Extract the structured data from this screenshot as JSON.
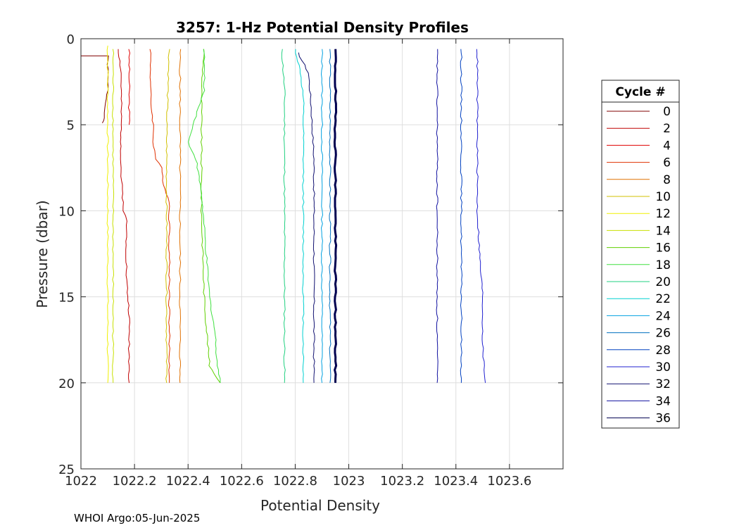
{
  "chart_data": {
    "type": "line",
    "title": "3257: 1-Hz Potential Density Profiles",
    "xlabel": "Potential Density",
    "ylabel": "Pressure (dbar)",
    "xlim": [
      1022,
      1023.8
    ],
    "ylim": [
      0,
      25
    ],
    "y_reversed": true,
    "x_ticks": [
      1022,
      1022.2,
      1022.4,
      1022.6,
      1022.8,
      1023,
      1023.2,
      1023.4,
      1023.6
    ],
    "x_tick_labels": [
      "1022",
      "1022.2",
      "1022.4",
      "1022.6",
      "1022.8",
      "1023",
      "1023.2",
      "1023.4",
      "1023.6"
    ],
    "y_ticks": [
      0,
      5,
      10,
      15,
      20,
      25
    ],
    "y_tick_labels": [
      "0",
      "5",
      "10",
      "15",
      "20",
      "25"
    ],
    "grid": true,
    "legend_title": "Cycle #",
    "legend_position": "outside-right",
    "series": [
      {
        "name": "0",
        "color": "#800000",
        "points": [
          [
            1022.0,
            1.0
          ],
          [
            1022.1,
            1.0
          ],
          [
            1022.1,
            2.0
          ],
          [
            1022.1,
            3.0
          ],
          [
            1022.09,
            4.0
          ],
          [
            1022.09,
            4.6
          ],
          [
            1022.08,
            4.9
          ]
        ]
      },
      {
        "name": "2",
        "color": "#c00000",
        "points": [
          [
            1022.14,
            0.6
          ],
          [
            1022.15,
            2.0
          ],
          [
            1022.15,
            4.0
          ],
          [
            1022.15,
            6.0
          ],
          [
            1022.15,
            8.0
          ],
          [
            1022.16,
            10.0
          ],
          [
            1022.17,
            10.6
          ],
          [
            1022.17,
            12.0
          ],
          [
            1022.17,
            14.0
          ],
          [
            1022.18,
            16.0
          ],
          [
            1022.18,
            18.0
          ],
          [
            1022.18,
            20.0
          ]
        ]
      },
      {
        "name": "4",
        "color": "#e00000",
        "points": [
          [
            1022.18,
            0.6
          ],
          [
            1022.18,
            2.0
          ],
          [
            1022.18,
            3.5
          ],
          [
            1022.18,
            5.0
          ]
        ]
      },
      {
        "name": "6",
        "color": "#e03000",
        "points": [
          [
            1022.26,
            0.6
          ],
          [
            1022.26,
            2.0
          ],
          [
            1022.26,
            3.5
          ],
          [
            1022.27,
            5.0
          ],
          [
            1022.27,
            6.0
          ],
          [
            1022.28,
            7.0
          ],
          [
            1022.3,
            7.5
          ],
          [
            1022.31,
            8.5
          ],
          [
            1022.33,
            9.5
          ],
          [
            1022.33,
            12.0
          ],
          [
            1022.33,
            15.0
          ],
          [
            1022.33,
            18.0
          ],
          [
            1022.33,
            20.0
          ]
        ]
      },
      {
        "name": "8",
        "color": "#e07000",
        "points": [
          [
            1022.37,
            0.6
          ],
          [
            1022.37,
            5.0
          ],
          [
            1022.37,
            10.0
          ],
          [
            1022.37,
            15.0
          ],
          [
            1022.37,
            20.0
          ]
        ]
      },
      {
        "name": "10",
        "color": "#d0c000",
        "points": [
          [
            1022.33,
            0.6
          ],
          [
            1022.32,
            5.0
          ],
          [
            1022.32,
            10.0
          ],
          [
            1022.32,
            15.0
          ],
          [
            1022.32,
            20.0
          ]
        ]
      },
      {
        "name": "12",
        "color": "#f0f000",
        "points": [
          [
            1022.1,
            0.4
          ],
          [
            1022.1,
            5.0
          ],
          [
            1022.1,
            10.0
          ],
          [
            1022.1,
            15.0
          ],
          [
            1022.1,
            20.0
          ]
        ]
      },
      {
        "name": "14",
        "color": "#c8e000",
        "points": [
          [
            1022.12,
            0.6
          ],
          [
            1022.12,
            5.0
          ],
          [
            1022.12,
            10.0
          ],
          [
            1022.12,
            15.0
          ],
          [
            1022.12,
            20.0
          ]
        ]
      },
      {
        "name": "16",
        "color": "#60d000",
        "points": [
          [
            1022.46,
            0.6
          ],
          [
            1022.45,
            3.0
          ],
          [
            1022.45,
            5.0
          ],
          [
            1022.45,
            10.0
          ],
          [
            1022.46,
            15.0
          ],
          [
            1022.47,
            17.0
          ],
          [
            1022.48,
            19.0
          ],
          [
            1022.52,
            20.0
          ]
        ]
      },
      {
        "name": "18",
        "color": "#40e040",
        "points": [
          [
            1022.46,
            0.6
          ],
          [
            1022.46,
            3.0
          ],
          [
            1022.4,
            6.0
          ],
          [
            1022.43,
            7.0
          ],
          [
            1022.45,
            9.0
          ],
          [
            1022.46,
            11.0
          ],
          [
            1022.47,
            13.0
          ],
          [
            1022.48,
            15.0
          ],
          [
            1022.5,
            17.0
          ],
          [
            1022.51,
            19.0
          ],
          [
            1022.52,
            20.0
          ]
        ]
      },
      {
        "name": "20",
        "color": "#20d080",
        "points": [
          [
            1022.75,
            0.6
          ],
          [
            1022.76,
            3.0
          ],
          [
            1022.76,
            5.0
          ],
          [
            1022.76,
            10.0
          ],
          [
            1022.76,
            15.0
          ],
          [
            1022.76,
            20.0
          ]
        ]
      },
      {
        "name": "22",
        "color": "#00d0d0",
        "points": [
          [
            1022.8,
            0.6
          ],
          [
            1022.82,
            2.0
          ],
          [
            1022.83,
            3.5
          ],
          [
            1022.83,
            5.0
          ],
          [
            1022.83,
            10.0
          ],
          [
            1022.83,
            15.0
          ],
          [
            1022.83,
            20.0
          ]
        ]
      },
      {
        "name": "24",
        "color": "#00a0e0",
        "points": [
          [
            1022.9,
            0.6
          ],
          [
            1022.9,
            5.0
          ],
          [
            1022.9,
            10.0
          ],
          [
            1022.9,
            15.0
          ],
          [
            1022.9,
            20.0
          ]
        ]
      },
      {
        "name": "26",
        "color": "#0070c0",
        "points": [
          [
            1022.93,
            0.6
          ],
          [
            1022.93,
            5.0
          ],
          [
            1022.93,
            10.0
          ],
          [
            1022.93,
            15.0
          ],
          [
            1022.93,
            20.0
          ]
        ]
      },
      {
        "name": "28",
        "color": "#0040c0",
        "points": [
          [
            1023.42,
            0.6
          ],
          [
            1023.42,
            5.0
          ],
          [
            1023.42,
            10.0
          ],
          [
            1023.42,
            15.0
          ],
          [
            1023.42,
            20.0
          ]
        ]
      },
      {
        "name": "30",
        "color": "#2020d0",
        "points": [
          [
            1023.48,
            0.6
          ],
          [
            1023.48,
            5.0
          ],
          [
            1023.48,
            10.0
          ],
          [
            1023.49,
            13.0
          ],
          [
            1023.5,
            15.0
          ],
          [
            1023.5,
            18.0
          ],
          [
            1023.51,
            20.0
          ]
        ]
      },
      {
        "name": "32",
        "color": "#101070",
        "points": [
          [
            1022.81,
            0.8
          ],
          [
            1022.85,
            2.0
          ],
          [
            1022.86,
            4.0
          ],
          [
            1022.87,
            7.0
          ],
          [
            1022.87,
            10.0
          ],
          [
            1022.87,
            15.0
          ],
          [
            1022.87,
            20.0
          ]
        ]
      },
      {
        "name": "34",
        "color": "#1010a0",
        "points": [
          [
            1023.33,
            0.6
          ],
          [
            1023.33,
            5.0
          ],
          [
            1023.33,
            10.0
          ],
          [
            1023.33,
            15.0
          ],
          [
            1023.33,
            20.0
          ]
        ]
      },
      {
        "name": "36",
        "color": "#000050",
        "points": [
          [
            1022.95,
            0.6
          ],
          [
            1022.95,
            5.0
          ],
          [
            1022.95,
            10.0
          ],
          [
            1022.95,
            15.0
          ],
          [
            1022.95,
            20.0
          ]
        ]
      }
    ]
  },
  "footer": {
    "text": "WHOI Argo:05-Jun-2025"
  }
}
